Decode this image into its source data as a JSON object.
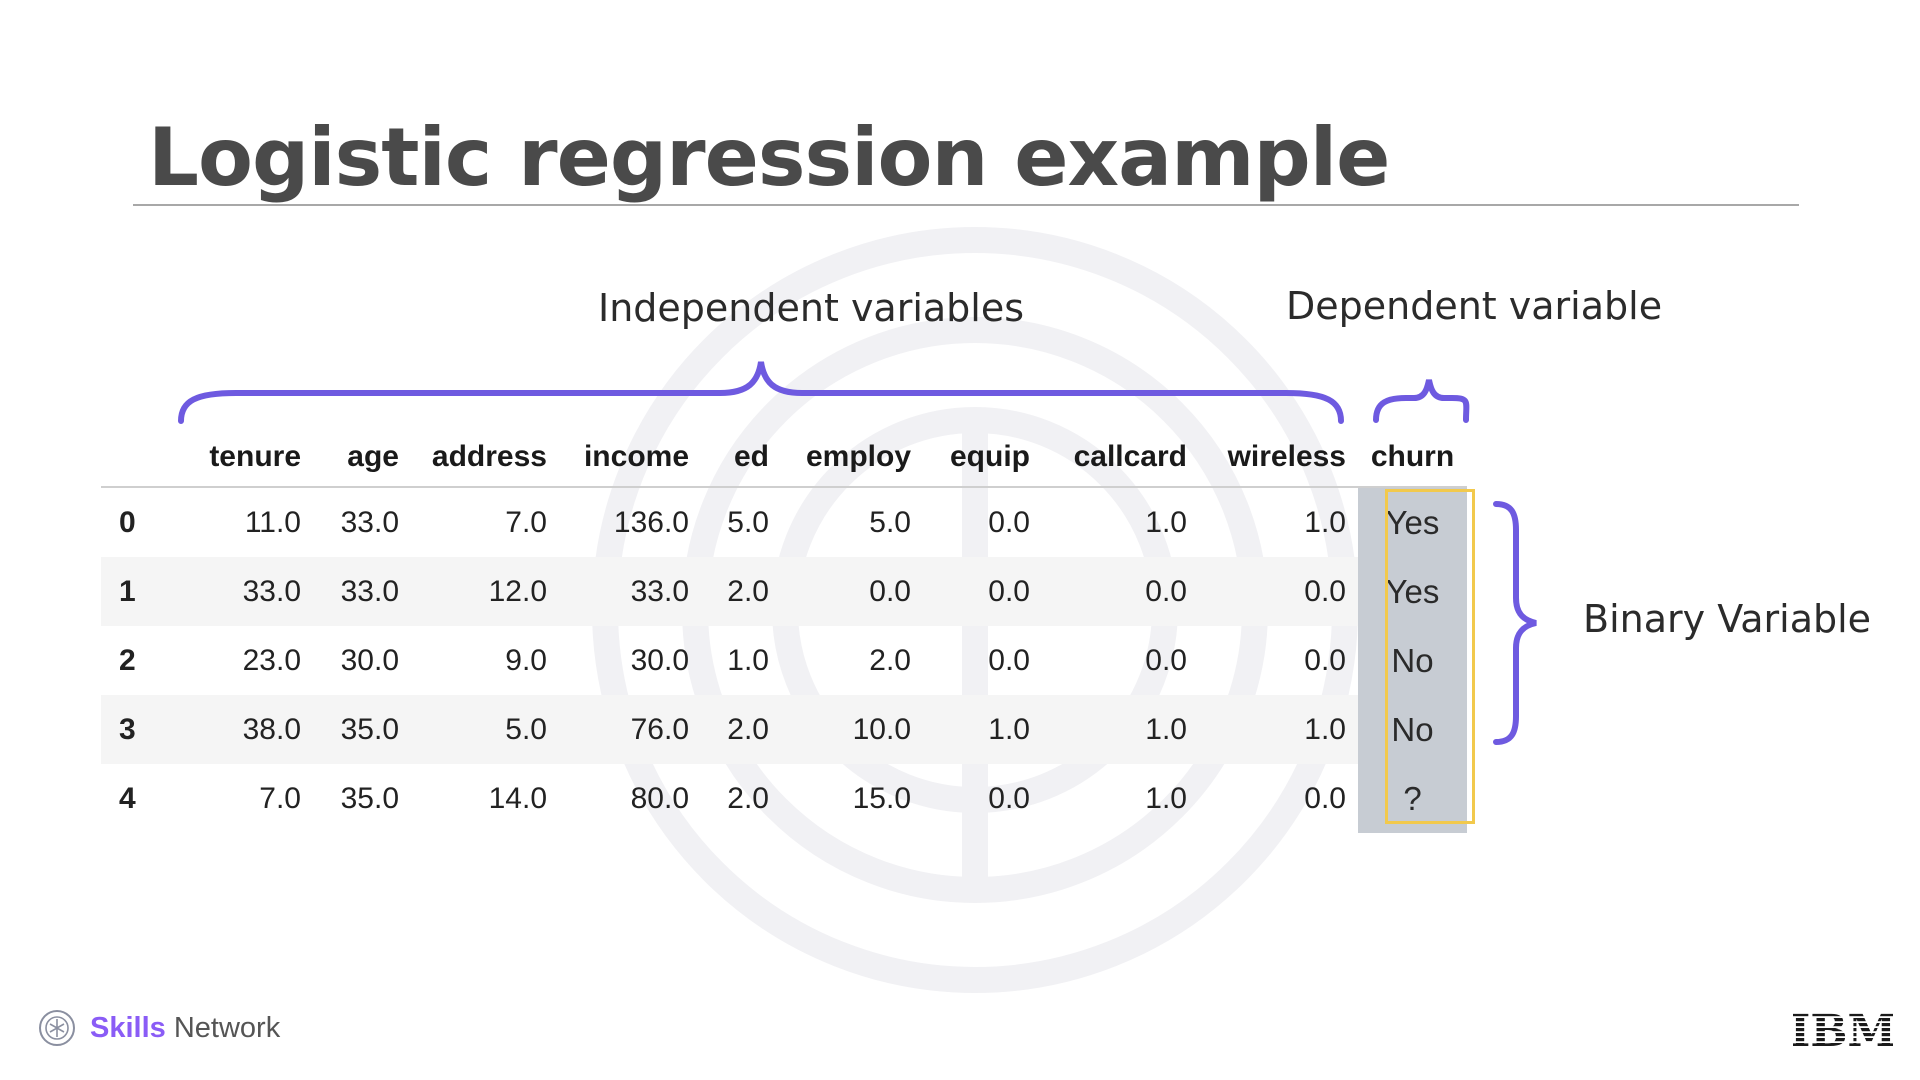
{
  "title": "Logistic regression example",
  "annotations": {
    "independent": "Independent variables",
    "dependent": "Dependent variable",
    "binary": "Binary Variable"
  },
  "colors": {
    "brace": "#6e5ae0",
    "highlight_border": "#f2c94c",
    "highlight_fill": "#c7ccd3",
    "title": "#4a4a4a",
    "brand_purple": "#8a5cf6"
  },
  "table": {
    "columns": [
      "",
      "tenure",
      "age",
      "address",
      "income",
      "ed",
      "employ",
      "equip",
      "callcard",
      "wireless",
      "churn"
    ],
    "rows": [
      [
        "0",
        "11.0",
        "33.0",
        "7.0",
        "136.0",
        "5.0",
        "5.0",
        "0.0",
        "1.0",
        "1.0",
        "Yes"
      ],
      [
        "1",
        "33.0",
        "33.0",
        "12.0",
        "33.0",
        "2.0",
        "0.0",
        "0.0",
        "0.0",
        "0.0",
        "Yes"
      ],
      [
        "2",
        "23.0",
        "30.0",
        "9.0",
        "30.0",
        "1.0",
        "2.0",
        "0.0",
        "0.0",
        "0.0",
        "No"
      ],
      [
        "3",
        "38.0",
        "35.0",
        "5.0",
        "76.0",
        "2.0",
        "10.0",
        "1.0",
        "1.0",
        "1.0",
        "No"
      ],
      [
        "4",
        "7.0",
        "35.0",
        "14.0",
        "80.0",
        "2.0",
        "15.0",
        "0.0",
        "1.0",
        "0.0",
        "?"
      ]
    ]
  },
  "footer": {
    "brand_bold": "Skills",
    "brand_rest": " Network",
    "ibm_logo_text": "IBM",
    "icons": [
      "skills-network-logo-icon",
      "ibm-logo-icon"
    ]
  }
}
